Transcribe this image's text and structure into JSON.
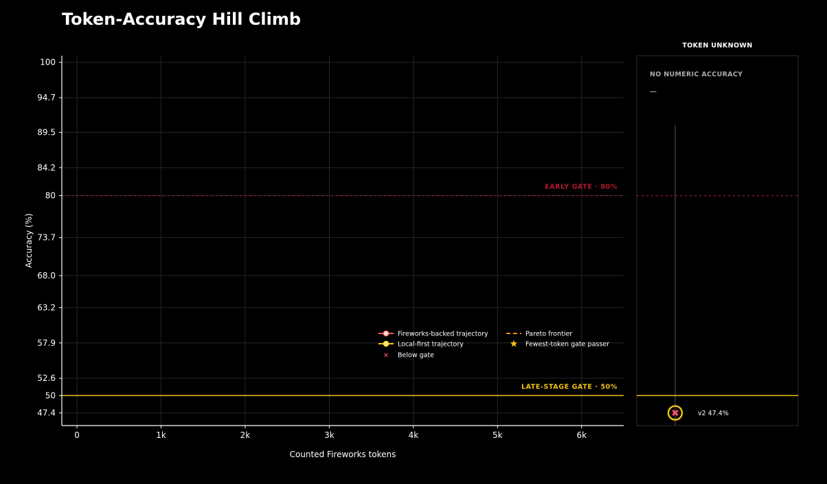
{
  "chart_data": {
    "type": "line",
    "title": "Token-Accuracy Hill Climb",
    "xlabel": "Counted Fireworks tokens",
    "ylabel": "Accuracy (%)",
    "xlim": [
      -180,
      6500
    ],
    "ylim": [
      45.5,
      101
    ],
    "x_ticks": [
      0,
      1000,
      2000,
      3000,
      4000,
      5000,
      6000
    ],
    "x_tick_labels": [
      "0",
      "1k",
      "2k",
      "3k",
      "4k",
      "5k",
      "6k"
    ],
    "y_ticks": [
      47.4,
      50,
      52.6,
      57.9,
      63.2,
      68.0,
      73.7,
      80,
      84.2,
      89.5,
      94.7,
      100
    ],
    "y_tick_labels": [
      "47.4",
      "50",
      "52.6",
      "57.9",
      "63.2",
      "68.0",
      "73.7",
      "80",
      "84.2",
      "89.5",
      "94.7",
      "100"
    ],
    "grid": true,
    "gates": [
      {
        "label": "EARLY GATE · 80%",
        "value": 80,
        "color": "#b01a2e",
        "style": "dashed"
      },
      {
        "label": "LATE-STAGE GATE · 50%",
        "value": 50,
        "color": "#f2c418",
        "style": "solid"
      }
    ],
    "legend": {
      "position": "lower-right",
      "entries": [
        {
          "label": "Fireworks-backed trajectory",
          "kind": "line-marker",
          "color": "#ff5a5a",
          "marker_fill": "#ffd9d0"
        },
        {
          "label": "Local-first trajectory",
          "kind": "line-marker",
          "color": "#f2c418",
          "marker_fill": "#ffe680"
        },
        {
          "label": "Below gate",
          "kind": "x",
          "color": "#ff4d6a"
        },
        {
          "label": "Pareto frontier",
          "kind": "dashed",
          "color": "#ff8a1c"
        },
        {
          "label": "Fewest-token gate passer",
          "kind": "star",
          "color": "#f2c418"
        }
      ]
    },
    "series": [],
    "side_panel": {
      "title": "TOKEN UNKNOWN",
      "subtitle": "NO NUMERIC ACCURACY",
      "dash": "—",
      "points": [
        {
          "label": "v2",
          "accuracy": 47.4,
          "accuracy_label": "47.4%",
          "below_gate": true
        }
      ]
    }
  }
}
